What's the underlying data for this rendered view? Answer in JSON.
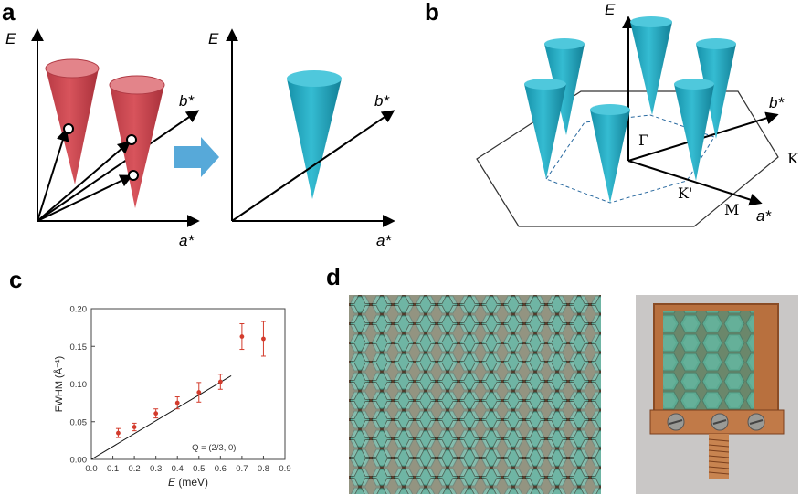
{
  "panels": {
    "a": {
      "letter": "a",
      "left": {
        "e_label": "E",
        "b_label": "b*",
        "a_label": "a*"
      },
      "right": {
        "e_label": "E",
        "b_label": "b*",
        "a_label": "a*"
      }
    },
    "b": {
      "letter": "b",
      "e_label": "E",
      "b_label": "b*",
      "a_label": "a*",
      "gamma": "Γ",
      "k": "K",
      "kprime": "K'",
      "m": "M"
    },
    "c": {
      "letter": "c"
    },
    "d": {
      "letter": "d"
    }
  },
  "colors": {
    "red_cone": "#c8454c",
    "cyan_cone": "#1fa8c0",
    "arrow_blue": "#57a9d9"
  },
  "chart_data": {
    "type": "scatter",
    "xlabel_var": "E",
    "xlabel_unit": "(meV)",
    "ylabel": "FWHM (Å⁻¹)",
    "xlim": [
      0.0,
      0.9
    ],
    "ylim": [
      0.0,
      0.2
    ],
    "xticks": [
      "0.0",
      "0.1",
      "0.2",
      "0.3",
      "0.4",
      "0.5",
      "0.6",
      "0.7",
      "0.8",
      "0.9"
    ],
    "yticks": [
      "0.00",
      "0.05",
      "0.10",
      "0.15",
      "0.20"
    ],
    "annotation": "Q = (2/3, 0)",
    "series": [
      {
        "x": [
          0.125,
          0.2,
          0.3,
          0.4,
          0.5,
          0.6,
          0.7,
          0.8
        ],
        "y": [
          0.035,
          0.043,
          0.061,
          0.075,
          0.089,
          0.103,
          0.163,
          0.16
        ],
        "err": [
          0.006,
          0.005,
          0.006,
          0.008,
          0.013,
          0.01,
          0.017,
          0.023
        ],
        "color": "#d33b2c"
      }
    ],
    "fit_line": {
      "x": [
        0.0,
        0.65
      ],
      "y": [
        0.0,
        0.111
      ]
    }
  }
}
